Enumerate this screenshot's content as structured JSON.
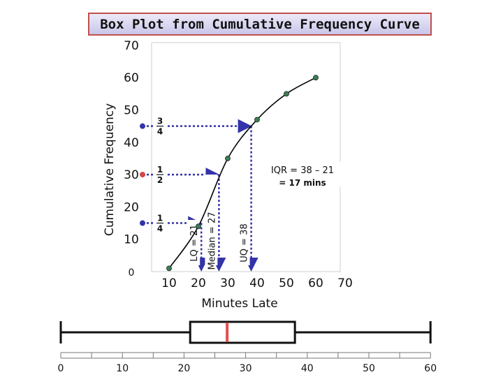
{
  "title": "Box Plot from Cumulative Frequency Curve",
  "chart_data": [
    {
      "type": "line",
      "title": "Box Plot from Cumulative Frequency Curve",
      "xlabel": "Minutes Late",
      "ylabel": "Cumulative Frequency",
      "x_ticks": [
        "10",
        "20",
        "30",
        "40",
        "50",
        "60",
        "70"
      ],
      "y_ticks": [
        "0",
        "10",
        "20",
        "30",
        "40",
        "50",
        "60",
        "70"
      ],
      "ylim": [
        0,
        70
      ],
      "series": [
        {
          "name": "Cumulative Frequency",
          "x": [
            10,
            20,
            30,
            40,
            50,
            60
          ],
          "values": [
            1,
            14,
            35,
            47,
            55,
            60
          ]
        }
      ],
      "fraction_labels": [
        {
          "num": "3",
          "den": "4",
          "y": 45
        },
        {
          "num": "1",
          "den": "2",
          "y": 30
        },
        {
          "num": "1",
          "den": "4",
          "y": 15
        }
      ],
      "readings": [
        {
          "label": "LQ = 21",
          "cf": 15,
          "x": 21
        },
        {
          "label": "Median = 27",
          "cf": 30,
          "x": 27
        },
        {
          "label": "UQ = 38",
          "cf": 45,
          "x": 38
        }
      ],
      "iqr_label": "IQR  = 38 – 21",
      "iqr_value": "= 17 mins"
    },
    {
      "type": "box",
      "axis_ticks": [
        "0",
        "10",
        "20",
        "30",
        "40",
        "50",
        "60"
      ],
      "min": 0,
      "lq": 21,
      "median": 27,
      "uq": 38,
      "max": 60
    }
  ],
  "colors": {
    "curve": "#000000",
    "point": "#3a7f55",
    "median_marker": "#e05050",
    "reading_lines": "#3333aa",
    "median_line_marker": "#d04848"
  }
}
